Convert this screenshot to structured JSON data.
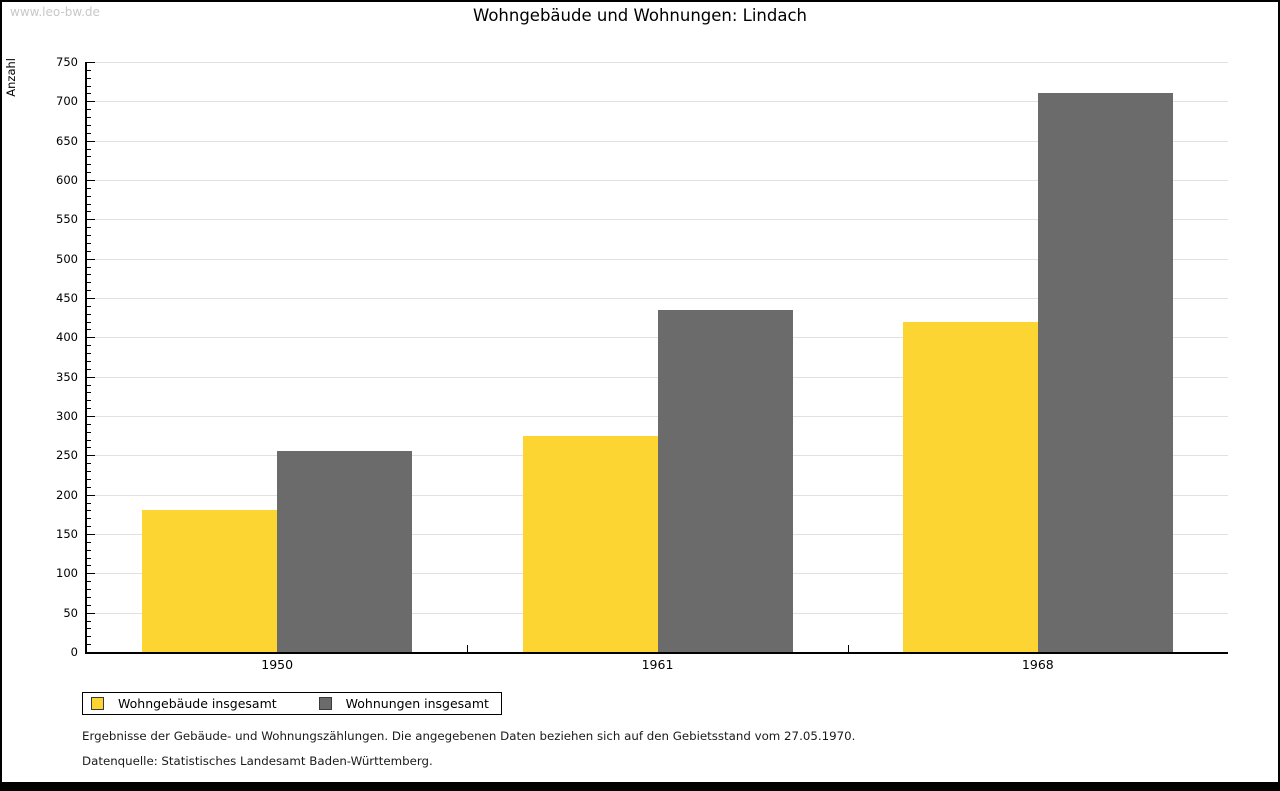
{
  "watermark": "www.leo-bw.de",
  "title": "Wohngebäude und Wohnungen: Lindach",
  "chart_data": {
    "type": "bar",
    "title": "Wohngebäude und Wohnungen: Lindach",
    "xlabel": "",
    "ylabel": "Anzahl",
    "ylim": [
      0,
      750
    ],
    "ytick_step": 50,
    "minor_tick_step": 10,
    "grid": true,
    "legend_position": "bottom-left",
    "categories": [
      "1950",
      "1961",
      "1968"
    ],
    "series": [
      {
        "name": "Wohngebäude insgesamt",
        "color": "#fcd532",
        "values": [
          180,
          275,
          420
        ]
      },
      {
        "name": "Wohnungen insgesamt",
        "color": "#6b6b6b",
        "values": [
          255,
          435,
          710
        ]
      }
    ]
  },
  "footer": {
    "line1": "Ergebnisse der Gebäude- und Wohnungszählungen. Die angegebenen Daten beziehen sich auf den Gebietsstand vom 27.05.1970.",
    "line2": "Datenquelle: Statistisches Landesamt Baden-Württemberg."
  },
  "colors": {
    "gridline": "#e1e1e1",
    "axis": "#000000",
    "watermark": "#c8c8c8",
    "background": "#ffffff"
  }
}
